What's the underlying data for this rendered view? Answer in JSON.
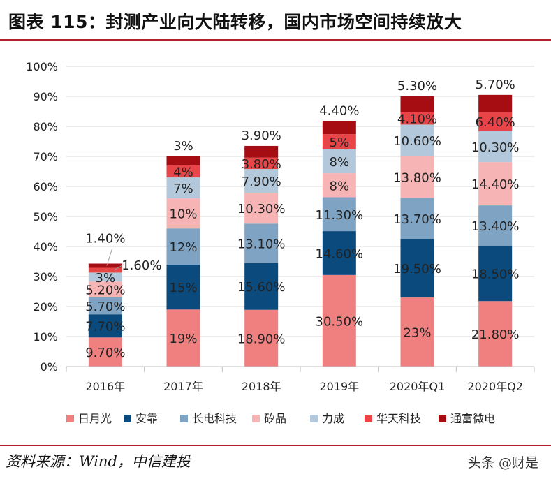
{
  "title": "图表 115：封测产业向大陆转移，国内市场空间持续放大",
  "source": "资料来源：Wind，中信建投",
  "watermark": "头条 @财是",
  "chart_data": {
    "type": "bar",
    "stacked": true,
    "categories": [
      "2016年",
      "2017年",
      "2018年",
      "2019年",
      "2020年Q1",
      "2020年Q2"
    ],
    "ylim": [
      0,
      100
    ],
    "yticks": [
      "0%",
      "10%",
      "20%",
      "30%",
      "40%",
      "50%",
      "60%",
      "70%",
      "80%",
      "90%",
      "100%"
    ],
    "legend_position": "bottom",
    "series": [
      {
        "name": "日月光",
        "color": "#f08080",
        "values": [
          9.7,
          19,
          18.9,
          30.5,
          23,
          21.8
        ],
        "labels": [
          "9.70%",
          "19%",
          "18.90%",
          "30.50%",
          "23%",
          "21.80%"
        ]
      },
      {
        "name": "安靠",
        "color": "#0b4a7c",
        "values": [
          7.7,
          15,
          15.6,
          14.6,
          19.5,
          18.5
        ],
        "labels": [
          "7.70%",
          "15%",
          "15.60%",
          "14.60%",
          "19.50%",
          "18.50%"
        ]
      },
      {
        "name": "长电科技",
        "color": "#7fa3c2",
        "values": [
          5.7,
          12,
          13.1,
          11.3,
          13.7,
          13.4
        ],
        "labels": [
          "5.70%",
          "12%",
          "13.10%",
          "11.30%",
          "13.70%",
          "13.40%"
        ]
      },
      {
        "name": "矽品",
        "color": "#f7b4b4",
        "values": [
          5.2,
          10,
          10.3,
          8,
          13.8,
          14.4
        ],
        "labels": [
          "5.20%",
          "10%",
          "10.30%",
          "8%",
          "13.80%",
          "14.40%"
        ]
      },
      {
        "name": "力成",
        "color": "#b3c8da",
        "values": [
          3,
          7,
          7.9,
          8,
          10.6,
          10.3
        ],
        "labels": [
          "3%",
          "7%",
          "7.90%",
          "8%",
          "10.60%",
          "10.30%"
        ]
      },
      {
        "name": "华天科技",
        "color": "#e94447",
        "values": [
          1.6,
          4,
          3.8,
          5,
          4.1,
          6.4
        ],
        "labels": [
          "1.60%",
          "4%",
          "3.80%",
          "5%",
          "4.10%",
          "6.40%"
        ]
      },
      {
        "name": "通富微电",
        "color": "#a50d12",
        "values": [
          1.4,
          3,
          3.9,
          4.4,
          5.3,
          5.7
        ],
        "labels": [
          "1.40%",
          "3%",
          "3.90%",
          "4.40%",
          "5.30%",
          "5.70%"
        ]
      }
    ]
  }
}
